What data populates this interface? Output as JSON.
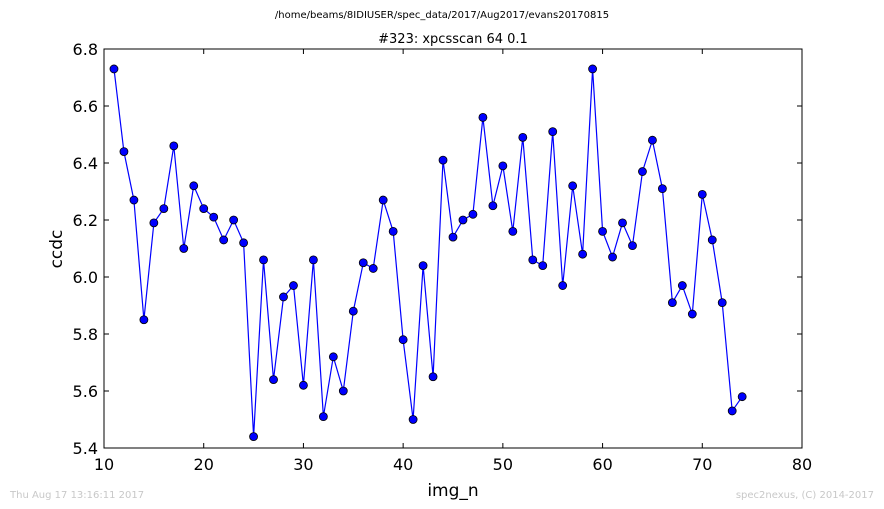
{
  "figure": {
    "suptitle": "/home/beams/8IDIUSER/spec_data/2017/Aug2017/evans20170815",
    "footer_left": "Thu Aug 17 13:16:11 2017",
    "footer_right": "spec2nexus, (C) 2014-2017"
  },
  "chart_data": {
    "type": "line",
    "title": "#323: xpcsscan 64 0.1",
    "xlabel": "img_n",
    "ylabel": "ccdc",
    "xlim": [
      10,
      80
    ],
    "ylim": [
      5.4,
      6.8
    ],
    "xticks": [
      10,
      20,
      30,
      40,
      50,
      60,
      70,
      80
    ],
    "yticks": [
      5.4,
      5.6,
      5.8,
      6.0,
      6.2,
      6.4,
      6.6,
      6.8
    ],
    "xtick_labels": [
      "10",
      "20",
      "30",
      "40",
      "50",
      "60",
      "70",
      "80"
    ],
    "ytick_labels": [
      "5.4",
      "5.6",
      "5.8",
      "6.0",
      "6.2",
      "6.4",
      "6.6",
      "6.8"
    ],
    "grid": false,
    "marker": "circle",
    "color": "#0000ff",
    "series": [
      {
        "x": [
          11,
          12,
          13,
          14,
          15,
          16,
          17,
          18,
          19,
          20,
          21,
          22,
          23,
          24,
          25,
          26,
          27,
          28,
          29,
          30,
          31,
          32,
          33,
          34,
          35,
          36,
          37,
          38,
          39,
          40,
          41,
          42,
          43,
          44,
          45,
          46,
          47,
          48,
          49,
          50,
          51,
          52,
          53,
          54,
          55,
          56,
          57,
          58,
          59,
          60,
          61,
          62,
          63,
          64,
          65,
          66,
          67,
          68,
          69,
          70,
          71,
          72,
          73,
          74
        ],
        "y": [
          6.73,
          6.44,
          6.27,
          5.85,
          6.19,
          6.24,
          6.46,
          6.1,
          6.32,
          6.24,
          6.21,
          6.13,
          6.2,
          6.12,
          5.44,
          6.06,
          5.64,
          5.93,
          5.97,
          5.62,
          6.06,
          5.51,
          5.72,
          5.6,
          5.88,
          6.05,
          6.03,
          6.27,
          6.16,
          5.78,
          5.5,
          6.04,
          5.65,
          6.41,
          6.14,
          6.2,
          6.22,
          6.56,
          6.25,
          6.39,
          6.16,
          6.49,
          6.06,
          6.04,
          6.51,
          5.97,
          6.32,
          6.08,
          6.73,
          6.16,
          6.07,
          6.19,
          6.11,
          6.37,
          6.48,
          6.31,
          5.91,
          5.97,
          5.87,
          6.29,
          6.13,
          5.91,
          5.53,
          5.58
        ]
      }
    ]
  }
}
